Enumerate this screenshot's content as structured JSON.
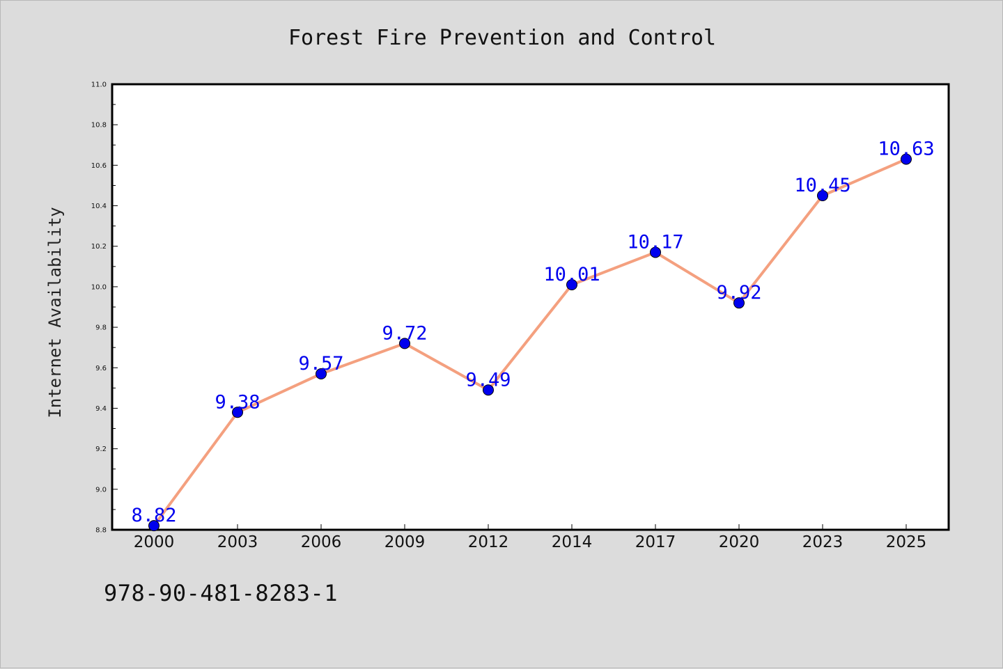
{
  "chart_data": {
    "type": "line",
    "title": "Forest Fire Prevention and Control",
    "xlabel": "",
    "ylabel": "Internet Availability",
    "categories": [
      "2000",
      "2003",
      "2006",
      "2009",
      "2012",
      "2014",
      "2017",
      "2020",
      "2023",
      "2025"
    ],
    "series": [
      {
        "values": [
          8.82,
          9.38,
          9.57,
          9.72,
          9.49,
          10.01,
          10.17,
          9.92,
          10.45,
          10.63
        ],
        "line_color": "#f4a07f",
        "marker_color": "#0000ee",
        "label_color": "#0000ee"
      }
    ],
    "ylim": [
      8.8,
      11.0
    ],
    "yticks": [
      "8.8",
      "9.0",
      "9.2",
      "9.4",
      "9.6",
      "9.8",
      "10.0",
      "10.2",
      "10.4",
      "10.6",
      "10.8",
      "11.0"
    ],
    "grid": false,
    "data_labels": true
  },
  "footer": {
    "code": "978-90-481-8283-1"
  },
  "colors": {
    "page_background": "#dcdcdc",
    "plot_background": "#ffffff",
    "axis": "#000000"
  }
}
